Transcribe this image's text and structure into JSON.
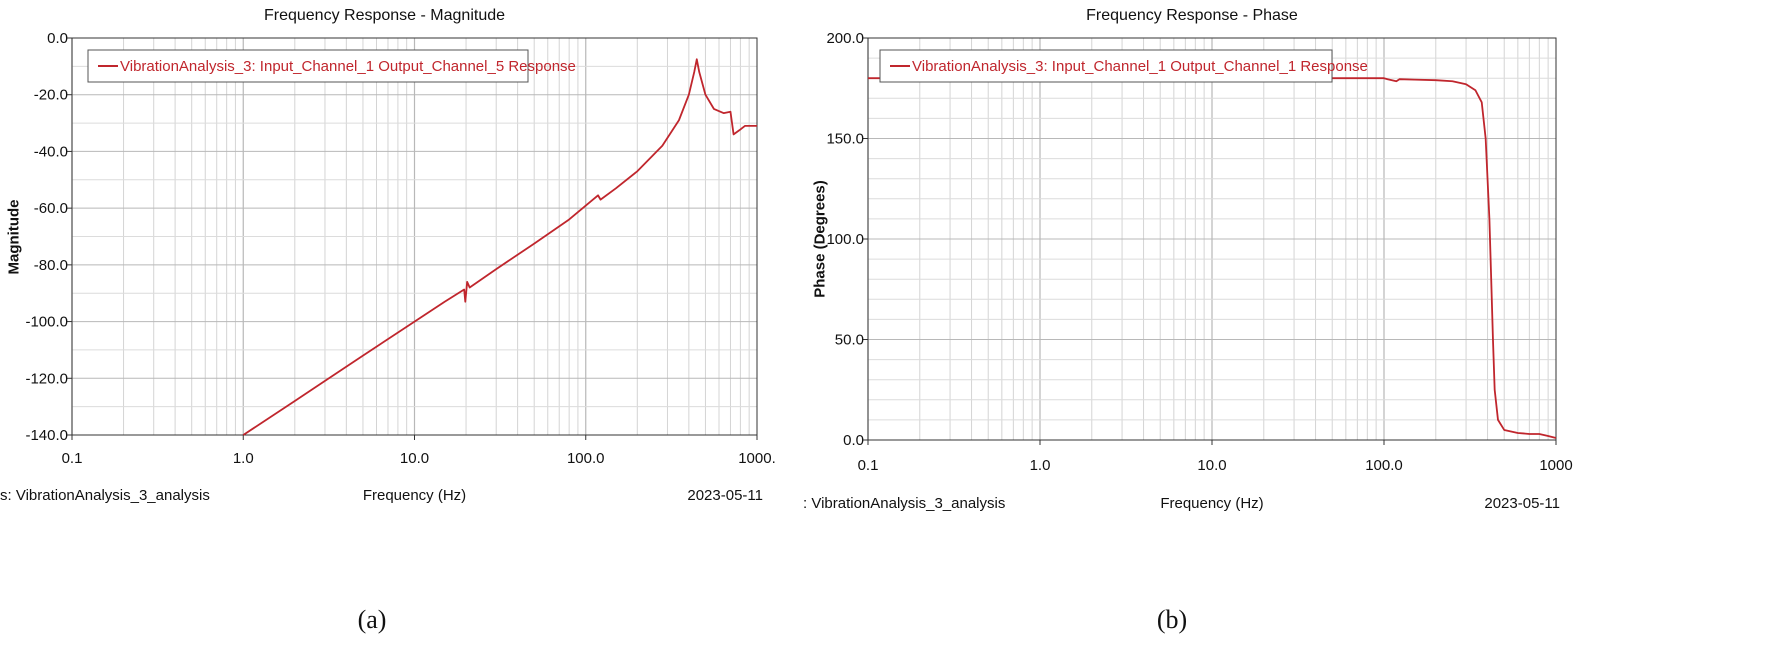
{
  "chart_data": [
    {
      "type": "line",
      "title": "Frequency Response - Magnitude",
      "xlabel": "Frequency (Hz)",
      "ylabel": "Magnitude",
      "x_scale": "log",
      "xlim": [
        0.1,
        1000
      ],
      "ylim": [
        -140,
        0
      ],
      "x_ticks": [
        "0.1",
        "1.0",
        "10.0",
        "100.0",
        "1000."
      ],
      "y_ticks": [
        "0.0",
        "-20.0",
        "-40.0",
        "-60.0",
        "-80.0",
        "-100.0",
        "-120.0",
        "-140.0"
      ],
      "grid": true,
      "legend_position": "top-left",
      "footer_left": "s:  VibrationAnalysis_3_analysis",
      "footer_right": "2023-05-11",
      "caption": "(a)",
      "color": "#c0262d",
      "series": [
        {
          "name": "VibrationAnalysis_3: Input_Channel_1 Output_Channel_5 Response",
          "points": [
            [
              1.0,
              -140.0
            ],
            [
              2,
              -128
            ],
            [
              5,
              -112
            ],
            [
              10,
              -100
            ],
            [
              15,
              -93
            ],
            [
              19.5,
              -88.7
            ],
            [
              19.8,
              -93
            ],
            [
              20.3,
              -86
            ],
            [
              21,
              -88
            ],
            [
              30,
              -81.5
            ],
            [
              50,
              -72.5
            ],
            [
              80,
              -64
            ],
            [
              110,
              -57
            ],
            [
              118,
              -55.5
            ],
            [
              122,
              -57
            ],
            [
              150,
              -53
            ],
            [
              200,
              -47
            ],
            [
              280,
              -38
            ],
            [
              350,
              -29
            ],
            [
              400,
              -20
            ],
            [
              430,
              -12
            ],
            [
              445,
              -7.5
            ],
            [
              460,
              -12
            ],
            [
              500,
              -20
            ],
            [
              560,
              -25
            ],
            [
              640,
              -26.5
            ],
            [
              700,
              -26
            ],
            [
              730,
              -34
            ],
            [
              790,
              -32.5
            ],
            [
              850,
              -31
            ],
            [
              1000,
              -31
            ]
          ]
        }
      ]
    },
    {
      "type": "line",
      "title": "Frequency Response - Phase",
      "xlabel": "Frequency (Hz)",
      "ylabel": "Phase (Degrees)",
      "x_scale": "log",
      "xlim": [
        0.1,
        1000
      ],
      "ylim": [
        0,
        200
      ],
      "x_ticks": [
        "0.1",
        "1.0",
        "10.0",
        "100.0",
        "1000"
      ],
      "y_ticks": [
        "200.0",
        "150.0",
        "100.0",
        "50.0",
        "0.0"
      ],
      "grid": true,
      "legend_position": "top-left",
      "footer_left": ":  VibrationAnalysis_3_analysis",
      "footer_right": "2023-05-11",
      "caption": "(b)",
      "color": "#c0262d",
      "series": [
        {
          "name": "VibrationAnalysis_3: Input_Channel_1 Output_Channel_1 Response",
          "points": [
            [
              0.1,
              180
            ],
            [
              10,
              180
            ],
            [
              100,
              180
            ],
            [
              105,
              179.5
            ],
            [
              118,
              178.5
            ],
            [
              123,
              179.5
            ],
            [
              150,
              179.3
            ],
            [
              200,
              179
            ],
            [
              250,
              178.5
            ],
            [
              300,
              177
            ],
            [
              340,
              174
            ],
            [
              370,
              168
            ],
            [
              390,
              150
            ],
            [
              410,
              110
            ],
            [
              420,
              80
            ],
            [
              430,
              50
            ],
            [
              440,
              25
            ],
            [
              460,
              10
            ],
            [
              500,
              5
            ],
            [
              600,
              3.5
            ],
            [
              700,
              3
            ],
            [
              800,
              3
            ],
            [
              900,
              2
            ],
            [
              1000,
              1
            ]
          ]
        }
      ]
    }
  ]
}
